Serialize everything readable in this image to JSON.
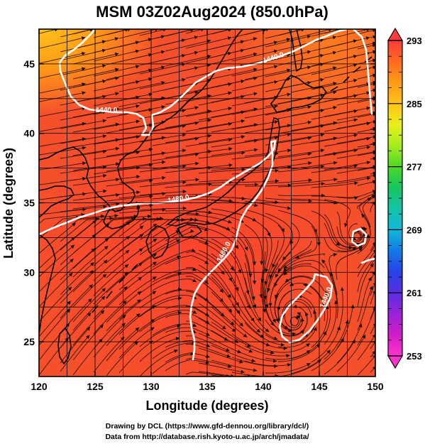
{
  "title": "MSM 03Z02Aug2024 (850.0hPa)",
  "xlabel": "Longitude (degrees)",
  "ylabel": "Latitude  (degrees)",
  "credits": {
    "line1": "Drawing by DCL (https://www.gfd-dennou.org/library/dcl/)",
    "line2": "Data from http://database.rish.kyoto-u.ac.jp/arch/jmadata/"
  },
  "map": {
    "lon_range": [
      120,
      150
    ],
    "lat_range": [
      22.5,
      47.5
    ],
    "x_ticks": [
      "120",
      "125",
      "130",
      "135",
      "140",
      "145",
      "150"
    ],
    "y_ticks": [
      "25",
      "30",
      "35",
      "40",
      "45"
    ],
    "grid_lon": [
      120,
      122.5,
      125,
      127.5,
      130,
      132.5,
      135,
      137.5,
      140,
      142.5,
      145,
      147.5,
      150
    ],
    "grid_lat": [
      25,
      27.5,
      30,
      32.5,
      35,
      37.5,
      40,
      42.5,
      45,
      47.5
    ],
    "field_colors": {
      "base": "#f5502c",
      "warm": "#ff3a2a",
      "cool_north": "#ff7a1e",
      "coolest_nw": "#ffc21a"
    },
    "contour_color": "#ffffff",
    "contour_labels": [
      "1440.0",
      "1440.0",
      "1480.0",
      "1480.0",
      "1440.0"
    ]
  },
  "colorbar": {
    "vmin": 253,
    "vmax": 293,
    "tick_labels": [
      "293",
      "285",
      "277",
      "269",
      "261",
      "253"
    ],
    "colors": [
      "#ff3b3b",
      "#ff6a1f",
      "#ff9a17",
      "#ffc21a",
      "#e8ef1b",
      "#a6ec1e",
      "#4cd926",
      "#17c560",
      "#14c4a6",
      "#12b7d8",
      "#1479e6",
      "#2743e8",
      "#5a2ee0",
      "#9a22d8",
      "#d01dc8",
      "#ff33cc"
    ]
  },
  "chart_data": {
    "type": "heatmap",
    "title": "MSM 03Z02Aug2024 (850.0hPa)",
    "xlabel": "Longitude (degrees)",
    "ylabel": "Latitude  (degrees)",
    "xlim": [
      120,
      150
    ],
    "ylim": [
      22.5,
      47.5
    ],
    "colorbar_range": [
      253,
      293
    ],
    "colorbar_ticks": [
      293,
      285,
      277,
      269,
      261,
      253
    ],
    "contour_levels": [
      1440,
      1480
    ]
  }
}
